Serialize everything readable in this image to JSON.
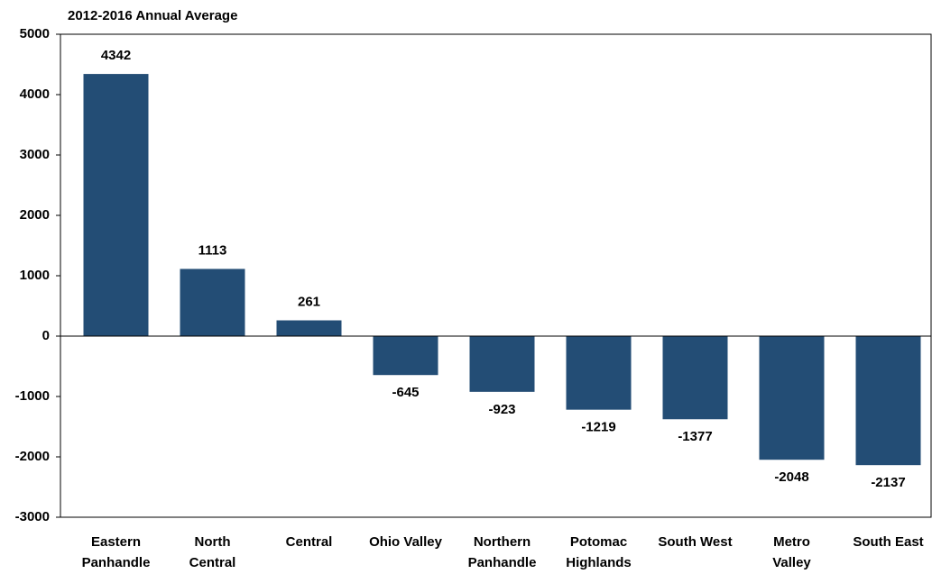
{
  "chart_data": {
    "type": "bar",
    "title": "2012-2016 Annual Average",
    "categories": [
      "Eastern\nPanhandle",
      "North\nCentral",
      "Central",
      "Ohio Valley",
      "Northern\nPanhandle",
      "Potomac\nHighlands",
      "South West",
      "Metro\nValley",
      "South East"
    ],
    "values": [
      4342,
      1113,
      261,
      -645,
      -923,
      -1219,
      -1377,
      -2048,
      -2137
    ],
    "color": "#234d75",
    "ylim": [
      -3000,
      5000
    ],
    "yticks": [
      -3000,
      -2000,
      -1000,
      0,
      1000,
      2000,
      3000,
      4000,
      5000
    ]
  }
}
